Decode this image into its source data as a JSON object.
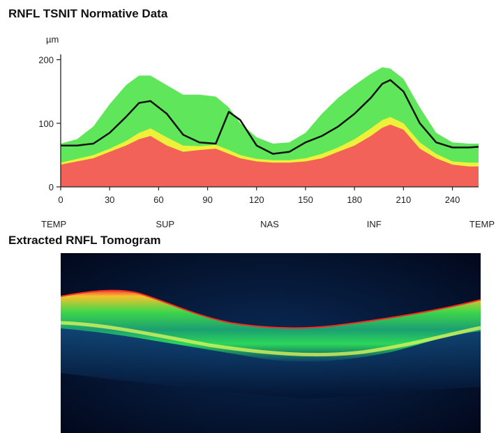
{
  "chart_data": {
    "type": "area",
    "title": "RNFL TSNIT Normative Data",
    "ylabel": "µm",
    "xlabel": "",
    "xlim": [
      0,
      256
    ],
    "ylim": [
      0,
      250
    ],
    "x_ticks": [
      0,
      30,
      60,
      90,
      120,
      150,
      180,
      210,
      240
    ],
    "y_ticks": [
      0,
      100,
      200
    ],
    "region_labels": [
      {
        "text": "TEMP",
        "x": 0
      },
      {
        "text": "SUP",
        "x": 64
      },
      {
        "text": "NAS",
        "x": 128
      },
      {
        "text": "INF",
        "x": 192
      },
      {
        "text": "TEMP",
        "x": 256
      }
    ],
    "grid": false,
    "x": [
      0,
      10,
      20,
      30,
      40,
      48,
      55,
      65,
      75,
      85,
      95,
      103,
      110,
      120,
      130,
      140,
      150,
      160,
      170,
      180,
      190,
      197,
      202,
      210,
      220,
      230,
      240,
      250,
      256
    ],
    "bands": [
      {
        "name": "red",
        "color": "#f26258",
        "values": [
          35,
          40,
          45,
          55,
          65,
          75,
          80,
          65,
          55,
          58,
          60,
          52,
          45,
          40,
          38,
          38,
          40,
          45,
          55,
          65,
          80,
          93,
          98,
          90,
          60,
          45,
          35,
          32,
          32
        ]
      },
      {
        "name": "yellow",
        "color": "#eef03a",
        "values": [
          38,
          44,
          50,
          60,
          72,
          85,
          92,
          78,
          65,
          64,
          66,
          58,
          50,
          44,
          42,
          42,
          45,
          52,
          62,
          75,
          92,
          105,
          110,
          100,
          70,
          52,
          40,
          38,
          38
        ]
      },
      {
        "name": "green",
        "color": "#5fe65a",
        "values": [
          68,
          75,
          95,
          130,
          160,
          175,
          175,
          160,
          145,
          145,
          142,
          125,
          100,
          78,
          68,
          70,
          85,
          115,
          140,
          160,
          178,
          188,
          186,
          170,
          125,
          85,
          70,
          68,
          68
        ]
      }
    ],
    "series": [
      {
        "color": "#111111",
        "values": [
          65,
          65,
          68,
          85,
          110,
          132,
          135,
          115,
          82,
          70,
          68,
          118,
          105,
          65,
          52,
          55,
          70,
          80,
          95,
          115,
          140,
          162,
          168,
          150,
          100,
          70,
          62,
          62,
          63
        ]
      }
    ]
  },
  "tomogram": {
    "title": "Extracted RNFL Tomogram"
  }
}
